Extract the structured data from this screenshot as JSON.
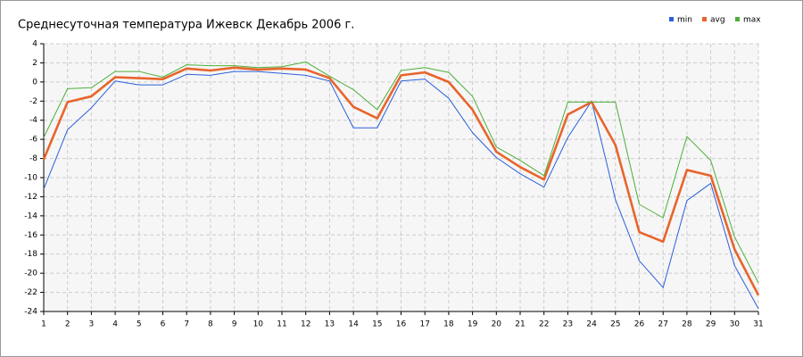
{
  "chart_data": {
    "type": "line",
    "title": "Среднесуточная температура Ижевск  Декабрь 2006 г.",
    "x": [
      1,
      2,
      3,
      4,
      5,
      6,
      7,
      8,
      9,
      10,
      11,
      12,
      13,
      14,
      15,
      16,
      17,
      18,
      19,
      20,
      21,
      22,
      23,
      24,
      25,
      26,
      27,
      28,
      29,
      30,
      31
    ],
    "series": [
      {
        "name": "min",
        "color": "#2b5fd9",
        "values": [
          -11.2,
          -5,
          -2.7,
          0.1,
          -0.3,
          -0.3,
          0.8,
          0.7,
          1.1,
          1.1,
          0.9,
          0.7,
          0.1,
          -4.8,
          -4.8,
          0.1,
          0.3,
          -1.7,
          -5.3,
          -7.9,
          -9.6,
          -11,
          -5.8,
          -2,
          -12.3,
          -18.7,
          -21.5,
          -12.4,
          -10.6,
          -19.2,
          -23.7
        ]
      },
      {
        "name": "avg",
        "color": "#e8642c",
        "values": [
          -8.1,
          -2.1,
          -1.5,
          0.5,
          0.4,
          0.3,
          1.4,
          1.2,
          1.5,
          1.3,
          1.4,
          1.3,
          0.4,
          -2.6,
          -3.8,
          0.7,
          1,
          0,
          -2.9,
          -7.3,
          -8.9,
          -10.2,
          -3.4,
          -2.1,
          -6.6,
          -15.7,
          -16.7,
          -9.2,
          -9.8,
          -17.5,
          -22.3
        ]
      },
      {
        "name": "max",
        "color": "#4caf3a",
        "values": [
          -5.8,
          -0.7,
          -0.6,
          1.1,
          1.1,
          0.5,
          1.8,
          1.7,
          1.7,
          1.5,
          1.6,
          2.1,
          0.6,
          -0.8,
          -2.9,
          1.2,
          1.5,
          1,
          -1.5,
          -6.8,
          -8.2,
          -9.8,
          -2.1,
          -2.1,
          -2.1,
          -12.8,
          -14.2,
          -5.7,
          -8.2,
          -16.2,
          -21
        ]
      }
    ],
    "xlim": [
      1,
      31
    ],
    "xticks": [
      1,
      2,
      3,
      4,
      5,
      6,
      7,
      8,
      9,
      10,
      11,
      12,
      13,
      14,
      15,
      16,
      17,
      18,
      19,
      20,
      21,
      22,
      23,
      24,
      25,
      26,
      27,
      28,
      29,
      30,
      31
    ],
    "ylim": [
      -24,
      4
    ],
    "yticks": [
      -24,
      -22,
      -20,
      -18,
      -16,
      -14,
      -12,
      -10,
      -8,
      -6,
      -4,
      -2,
      0,
      2,
      4
    ],
    "grid": true,
    "legend": "top-right"
  }
}
